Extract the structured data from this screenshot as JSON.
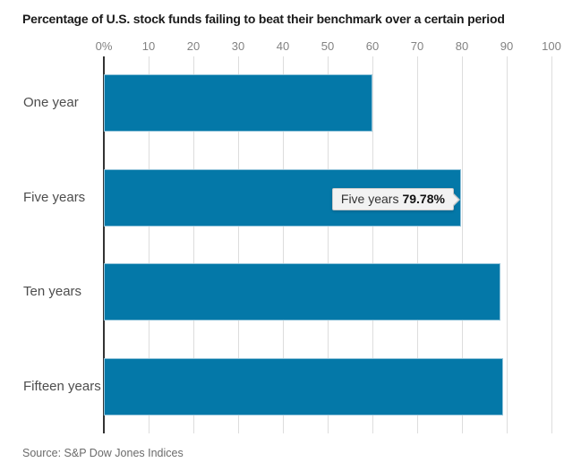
{
  "title": "Percentage of U.S. stock funds failing to beat their benchmark over a certain period",
  "source": "Source: S&P Dow Jones Indices",
  "colors": {
    "bar": "#0478a8",
    "bar_border": "#93c4da",
    "grid": "#dddddd",
    "zero_axis": "#333333",
    "tooltip_bg": "#f2f2f2"
  },
  "chart_data": {
    "type": "bar",
    "orientation": "horizontal",
    "title": "Percentage of U.S. stock funds failing to beat their benchmark over a certain period",
    "categories": [
      "One year",
      "Five years",
      "Ten years",
      "Fifteen years"
    ],
    "values": [
      60,
      79.78,
      88.5,
      89.2
    ],
    "xlabel": "",
    "ylabel": "",
    "xlim": [
      0,
      100
    ],
    "x_ticks": [
      "0%",
      "10",
      "20",
      "30",
      "40",
      "50",
      "60",
      "70",
      "80",
      "90",
      "100"
    ],
    "grid": true,
    "legend": false,
    "tooltip": {
      "label": "Five years",
      "value": "79.78%",
      "bar_index": 1
    }
  }
}
